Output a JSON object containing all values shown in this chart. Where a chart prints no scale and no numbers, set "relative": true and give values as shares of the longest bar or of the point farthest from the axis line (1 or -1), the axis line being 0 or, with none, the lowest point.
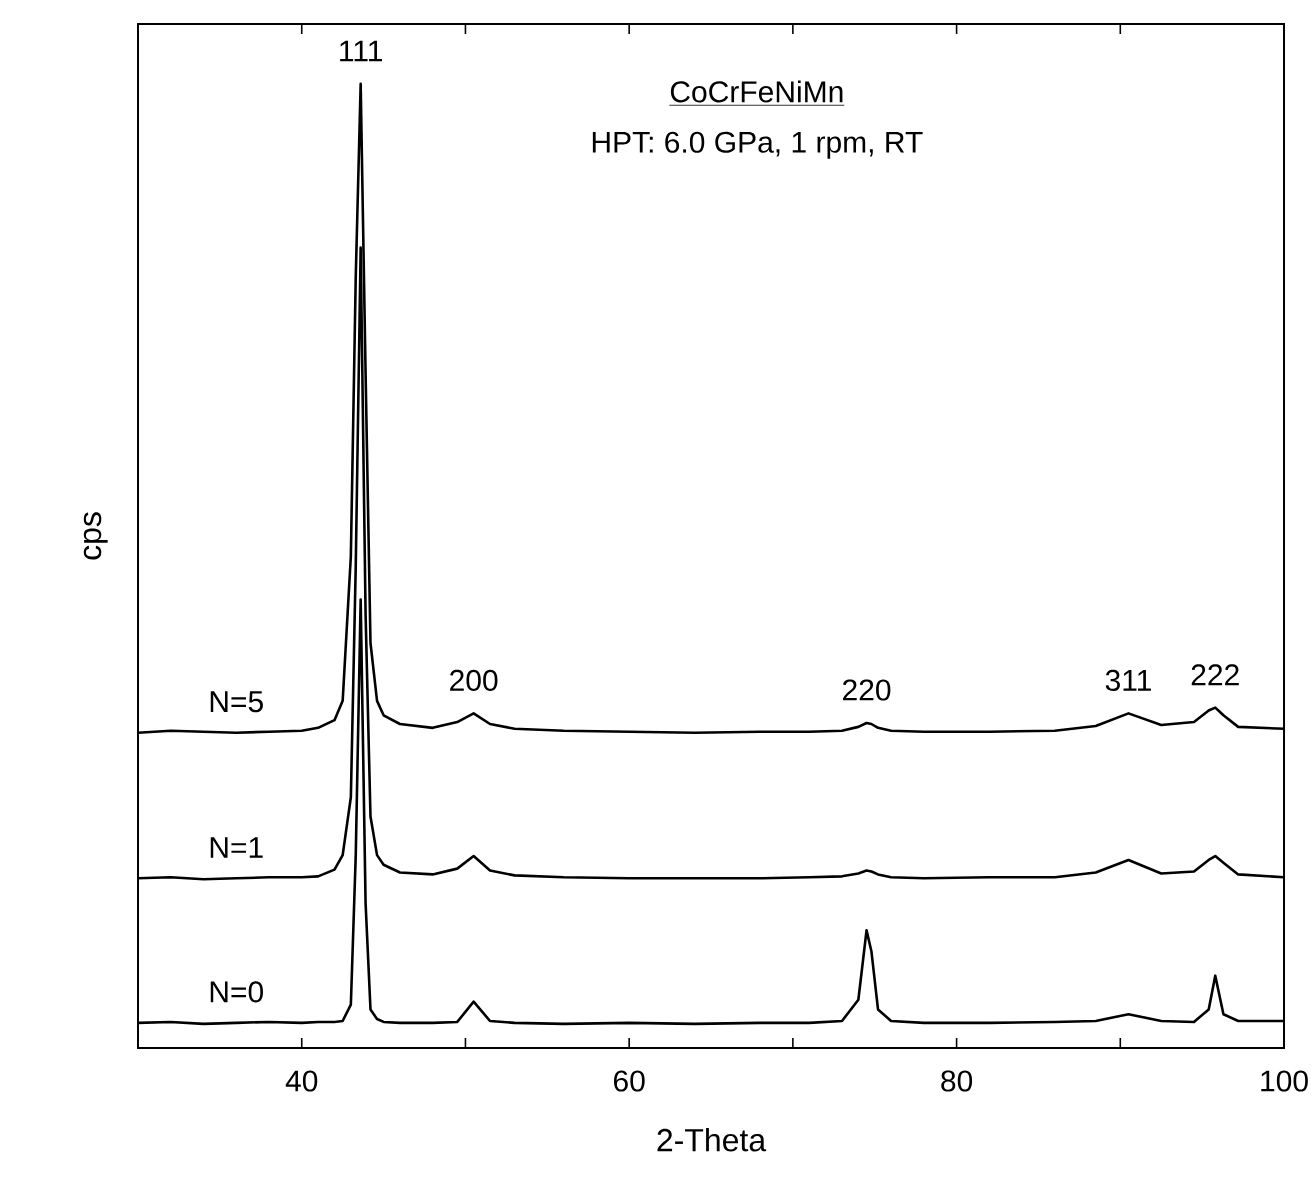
{
  "chart_data": {
    "type": "line",
    "relative": true,
    "title": "CoCrFeNiMn",
    "subtitle": "HPT: 6.0 GPa, 1 rpm, RT",
    "xlabel": "2-Theta",
    "ylabel": "cps",
    "tick_labels": "x",
    "xlim": [
      30,
      100
    ],
    "xticks": [
      40,
      {
        "value": 50,
        "label": null
      },
      60,
      {
        "value": 70,
        "label": null
      },
      80,
      {
        "value": 90,
        "label": null
      },
      100
    ],
    "x": [
      30,
      32,
      34,
      36,
      38,
      40,
      41,
      42,
      42.5,
      43,
      43.3,
      43.6,
      43.9,
      44.2,
      44.6,
      45,
      46,
      48,
      49.5,
      50.5,
      51.5,
      53,
      56,
      60,
      64,
      68,
      71,
      73,
      74,
      74.5,
      74.8,
      75.2,
      76,
      78,
      82,
      86,
      88.5,
      90.5,
      92.5,
      94.5,
      95.4,
      95.8,
      96.3,
      97.2,
      100
    ],
    "series": [
      {
        "name": "N=0",
        "color": "#000000",
        "values": [
          0.026,
          0.027,
          0.025,
          0.026,
          0.027,
          0.026,
          0.027,
          0.027,
          0.028,
          0.045,
          0.2,
          0.465,
          0.15,
          0.04,
          0.03,
          0.027,
          0.026,
          0.026,
          0.027,
          0.048,
          0.028,
          0.026,
          0.025,
          0.026,
          0.025,
          0.026,
          0.026,
          0.028,
          0.05,
          0.122,
          0.1,
          0.04,
          0.028,
          0.026,
          0.026,
          0.027,
          0.028,
          0.035,
          0.028,
          0.027,
          0.04,
          0.075,
          0.035,
          0.028,
          0.028
        ]
      },
      {
        "name": "N=1",
        "color": "#000000",
        "values": [
          0.176,
          0.177,
          0.175,
          0.176,
          0.177,
          0.177,
          0.178,
          0.185,
          0.2,
          0.26,
          0.5,
          0.83,
          0.45,
          0.24,
          0.2,
          0.19,
          0.182,
          0.18,
          0.186,
          0.199,
          0.184,
          0.179,
          0.177,
          0.176,
          0.176,
          0.176,
          0.177,
          0.178,
          0.181,
          0.184,
          0.183,
          0.18,
          0.177,
          0.176,
          0.177,
          0.177,
          0.182,
          0.195,
          0.181,
          0.183,
          0.195,
          0.199,
          0.192,
          0.18,
          0.177
        ]
      },
      {
        "name": "N=5",
        "color": "#000000",
        "values": [
          0.327,
          0.329,
          0.328,
          0.327,
          0.328,
          0.329,
          0.332,
          0.34,
          0.36,
          0.51,
          0.8,
          1.0,
          0.7,
          0.42,
          0.36,
          0.345,
          0.336,
          0.332,
          0.338,
          0.347,
          0.336,
          0.331,
          0.329,
          0.328,
          0.327,
          0.328,
          0.328,
          0.329,
          0.333,
          0.337,
          0.336,
          0.332,
          0.329,
          0.328,
          0.328,
          0.329,
          0.334,
          0.347,
          0.335,
          0.338,
          0.35,
          0.353,
          0.345,
          0.333,
          0.331
        ]
      }
    ],
    "annotations": [
      {
        "text": "111",
        "x": 43.6,
        "y": 1.0
      },
      {
        "text": "200",
        "x": 50.5,
        "y": 0.347
      },
      {
        "text": "220",
        "x": 74.5,
        "y": 0.337
      },
      {
        "text": "311",
        "x": 90.5,
        "y": 0.347
      },
      {
        "text": "222",
        "x": 95.8,
        "y": 0.353
      }
    ]
  }
}
